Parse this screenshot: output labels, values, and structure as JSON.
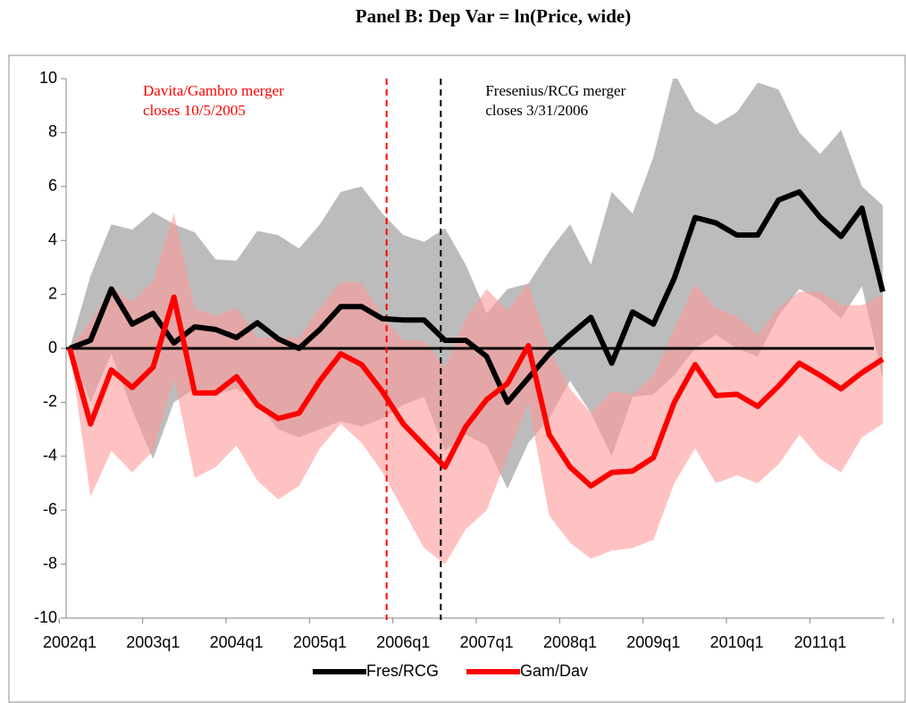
{
  "chart_data": {
    "type": "line",
    "title": "Panel B: Dep Var = ln(Price, wide)",
    "categories": [
      "2002q1",
      null,
      null,
      null,
      "2003q1",
      null,
      null,
      null,
      "2004q1",
      null,
      null,
      null,
      "2005q1",
      null,
      null,
      null,
      "2006q1",
      null,
      null,
      null,
      "2007q1",
      null,
      null,
      null,
      "2008q1",
      null,
      null,
      null,
      "2009q1",
      null,
      null,
      null,
      "2010q1",
      null,
      null,
      null,
      "2011q1",
      null,
      null,
      null
    ],
    "series": [
      {
        "name": "Fres/RCG",
        "color": "#000000",
        "band_color": "#a6a6a6",
        "values": [
          0,
          0.3,
          2.2,
          0.9,
          1.3,
          0.2,
          0.8,
          0.7,
          0.4,
          0.95,
          0.35,
          0.0,
          0.7,
          1.55,
          1.55,
          1.1,
          1.05,
          1.05,
          0.3,
          0.3,
          -0.3,
          -2.0,
          -1.1,
          -0.2,
          0.5,
          1.15,
          -0.55,
          1.35,
          0.9,
          2.6,
          4.85,
          4.65,
          4.2,
          4.2,
          5.5,
          5.8,
          4.85,
          4.15,
          5.2,
          2.1
        ],
        "band_upper": [
          0,
          2.7,
          4.6,
          4.4,
          5.05,
          4.6,
          4.3,
          3.3,
          3.25,
          4.35,
          4.2,
          3.7,
          4.6,
          5.8,
          6.0,
          5.0,
          4.2,
          3.95,
          4.45,
          3.1,
          1.3,
          2.2,
          2.4,
          3.6,
          4.6,
          3.1,
          5.8,
          5.0,
          7.1,
          10.2,
          8.8,
          8.3,
          8.75,
          9.85,
          9.6,
          8.0,
          7.2,
          8.1,
          6.0,
          5.3
        ],
        "band_lower": [
          0,
          -2.0,
          -0.2,
          -2.3,
          -4.1,
          -2.0,
          -1.5,
          -1.7,
          -1.5,
          -2.0,
          -3.0,
          -3.3,
          -3.0,
          -2.7,
          -2.9,
          -2.6,
          -2.1,
          -1.8,
          -3.8,
          -3.2,
          -3.6,
          -5.2,
          -3.5,
          -2.6,
          -1.2,
          -2.4,
          -4.0,
          -1.8,
          -1.7,
          -1.0,
          0.0,
          0.5,
          0.0,
          -0.3,
          1.2,
          2.2,
          1.8,
          1.1,
          2.3,
          -1.1
        ]
      },
      {
        "name": "Gam/Dav",
        "color": "#ff0000",
        "band_color": "#ff9999",
        "values": [
          0,
          -2.8,
          -0.8,
          -1.45,
          -0.7,
          1.9,
          -1.65,
          -1.65,
          -1.05,
          -2.1,
          -2.6,
          -2.4,
          -1.2,
          -0.2,
          -0.6,
          -1.6,
          -2.8,
          -3.6,
          -4.4,
          -2.9,
          -1.9,
          -1.3,
          0.1,
          -3.2,
          -4.4,
          -5.1,
          -4.6,
          -4.55,
          -4.05,
          -2.0,
          -0.6,
          -1.75,
          -1.7,
          -2.15,
          -1.4,
          -0.55,
          -1.0,
          -1.5,
          -0.9,
          -0.4
        ],
        "band_upper": [
          0,
          1.0,
          2.3,
          1.7,
          2.5,
          5.0,
          1.5,
          1.2,
          1.5,
          0.4,
          0.4,
          0.4,
          1.5,
          2.45,
          2.45,
          1.2,
          0.3,
          0.3,
          -0.7,
          1.1,
          2.2,
          1.4,
          2.4,
          0.0,
          -1.5,
          -2.4,
          -1.6,
          -1.7,
          -1.0,
          0.7,
          2.4,
          1.5,
          1.2,
          0.5,
          1.5,
          2.1,
          2.1,
          1.6,
          1.6,
          2.0
        ],
        "band_lower": [
          0,
          -5.5,
          -3.8,
          -4.6,
          -3.8,
          -1.1,
          -4.8,
          -4.4,
          -3.6,
          -4.9,
          -5.6,
          -5.1,
          -3.7,
          -2.8,
          -3.5,
          -4.6,
          -6.0,
          -7.4,
          -8.0,
          -6.7,
          -6.0,
          -4.0,
          -2.0,
          -6.2,
          -7.2,
          -7.8,
          -7.5,
          -7.4,
          -7.1,
          -5.0,
          -3.7,
          -5.0,
          -4.7,
          -5.0,
          -4.3,
          -3.2,
          -4.1,
          -4.6,
          -3.3,
          -2.8
        ]
      }
    ],
    "ylim": [
      -10,
      10
    ],
    "yticks": [
      -10,
      -8,
      -6,
      -4,
      -2,
      0,
      2,
      4,
      6,
      8,
      10
    ],
    "reference_line": 0,
    "events": [
      {
        "at": 15.2,
        "color": "#ff0000",
        "lines": [
          "Davita/Gambro  merger",
          "closes 10/5/2005"
        ]
      },
      {
        "at": 17.8,
        "color": "#000000",
        "lines": [
          "Fresenius/RCG merger",
          "closes 3/31/2006"
        ]
      }
    ],
    "legend": "bottom"
  }
}
